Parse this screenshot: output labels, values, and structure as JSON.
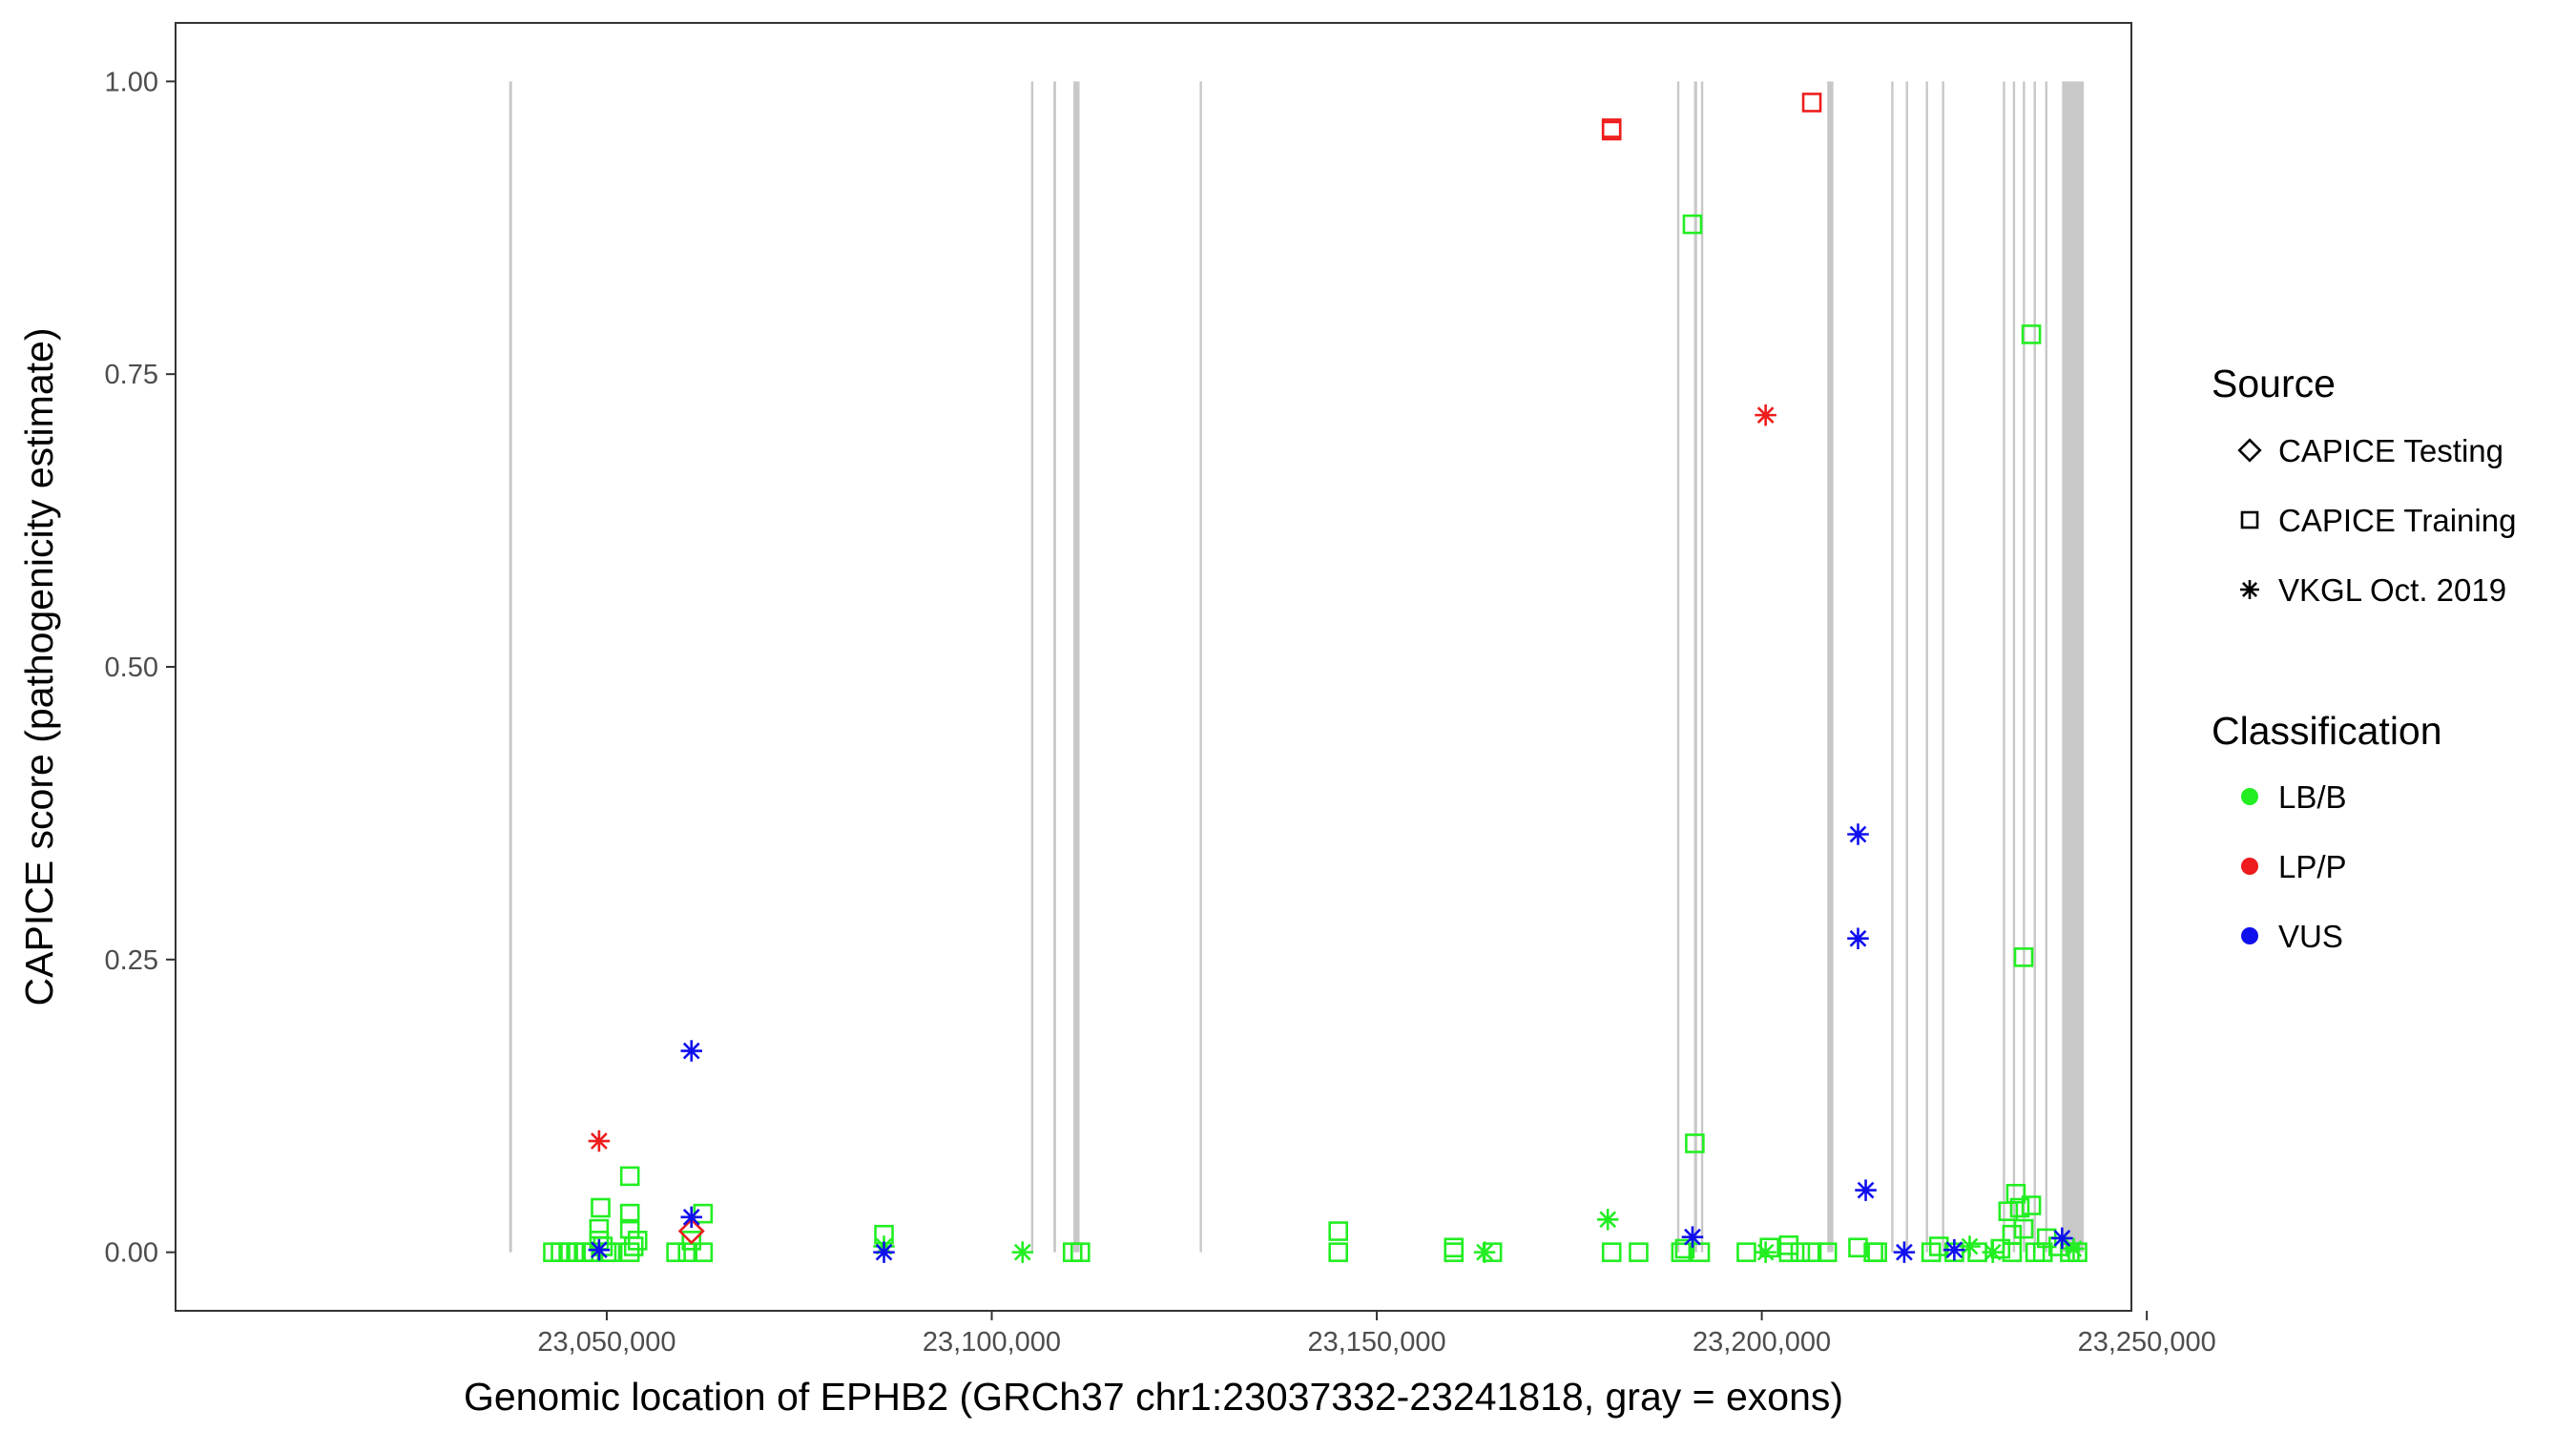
{
  "chart_data": {
    "type": "scatter",
    "title": "",
    "xlabel": "Genomic location of EPHB2 (GRCh37 chr1:23037332-23241818, gray = exons)",
    "ylabel": "CAPICE score (pathogenicity estimate)",
    "xlim": [
      22994000,
      23248000
    ],
    "ylim": [
      -0.05,
      1.05
    ],
    "xticks": [
      23050000,
      23100000,
      23150000,
      23200000,
      23250000
    ],
    "xtick_labels": [
      "23,050,000",
      "23,100,000",
      "23,150,000",
      "23,200,000",
      "23,250,000"
    ],
    "yticks": [
      0,
      0.25,
      0.5,
      0.75,
      1
    ],
    "ytick_labels": [
      "0.00",
      "0.25",
      "0.50",
      "0.75",
      "1.00"
    ],
    "grid": false,
    "exons": [
      [
        23037332,
        23037700
      ],
      [
        23105100,
        23105400
      ],
      [
        23108000,
        23108350
      ],
      [
        23110600,
        23111400
      ],
      [
        23127000,
        23127300
      ],
      [
        23189000,
        23189300
      ],
      [
        23191200,
        23191600
      ],
      [
        23192100,
        23192400
      ],
      [
        23208500,
        23209300
      ],
      [
        23216800,
        23217100
      ],
      [
        23218700,
        23219000
      ],
      [
        23221300,
        23221600
      ],
      [
        23223400,
        23223700
      ],
      [
        23231300,
        23231600
      ],
      [
        23232600,
        23232900
      ],
      [
        23233900,
        23234200
      ],
      [
        23235300,
        23235600
      ],
      [
        23236800,
        23237100
      ],
      [
        23239000,
        23241818
      ]
    ],
    "legend": {
      "position": "right",
      "source_title": "Source",
      "classification_title": "Classification",
      "sources": [
        {
          "label": "CAPICE Testing",
          "shape": "diamond"
        },
        {
          "label": "CAPICE Training",
          "shape": "square"
        },
        {
          "label": "VKGL Oct. 2019",
          "shape": "star"
        }
      ],
      "classes": [
        {
          "label": "LB/B",
          "color": "#22ee22"
        },
        {
          "label": "LP/P",
          "color": "#ee1c1c"
        },
        {
          "label": "VUS",
          "color": "#1010ee"
        }
      ]
    },
    "series": [
      {
        "name": "LB/B",
        "color": "#22ee22",
        "points": [
          {
            "x": 23043000,
            "y": 0.0,
            "s": "square"
          },
          {
            "x": 23044000,
            "y": 0.0,
            "s": "square"
          },
          {
            "x": 23045000,
            "y": 0.0,
            "s": "square"
          },
          {
            "x": 23046000,
            "y": 0.0,
            "s": "square"
          },
          {
            "x": 23047000,
            "y": 0.0,
            "s": "square"
          },
          {
            "x": 23048000,
            "y": 0.0,
            "s": "square"
          },
          {
            "x": 23049000,
            "y": 0.01,
            "s": "square"
          },
          {
            "x": 23049000,
            "y": 0.02,
            "s": "square"
          },
          {
            "x": 23049200,
            "y": 0.038,
            "s": "square"
          },
          {
            "x": 23049500,
            "y": 0.005,
            "s": "square"
          },
          {
            "x": 23050000,
            "y": 0.0,
            "s": "square"
          },
          {
            "x": 23050500,
            "y": 0.0,
            "s": "square"
          },
          {
            "x": 23053000,
            "y": 0.065,
            "s": "square"
          },
          {
            "x": 23053000,
            "y": 0.033,
            "s": "square"
          },
          {
            "x": 23053000,
            "y": 0.02,
            "s": "square"
          },
          {
            "x": 23053000,
            "y": 0.0,
            "s": "square"
          },
          {
            "x": 23053500,
            "y": 0.005,
            "s": "square"
          },
          {
            "x": 23054000,
            "y": 0.01,
            "s": "square"
          },
          {
            "x": 23059000,
            "y": 0.0,
            "s": "square"
          },
          {
            "x": 23060500,
            "y": 0.0,
            "s": "square"
          },
          {
            "x": 23061000,
            "y": 0.01,
            "s": "square"
          },
          {
            "x": 23062500,
            "y": 0.0,
            "s": "square"
          },
          {
            "x": 23062500,
            "y": 0.033,
            "s": "square"
          },
          {
            "x": 23086000,
            "y": 0.015,
            "s": "square"
          },
          {
            "x": 23086000,
            "y": 0.005,
            "s": "star"
          },
          {
            "x": 23104000,
            "y": 0.0,
            "s": "star"
          },
          {
            "x": 23110500,
            "y": 0.0,
            "s": "square"
          },
          {
            "x": 23111500,
            "y": 0.0,
            "s": "square"
          },
          {
            "x": 23145000,
            "y": 0.018,
            "s": "square"
          },
          {
            "x": 23145000,
            "y": 0.0,
            "s": "square"
          },
          {
            "x": 23160000,
            "y": 0.004,
            "s": "square"
          },
          {
            "x": 23160000,
            "y": 0.0,
            "s": "square"
          },
          {
            "x": 23164000,
            "y": 0.0,
            "s": "star"
          },
          {
            "x": 23165000,
            "y": 0.0,
            "s": "square"
          },
          {
            "x": 23180000,
            "y": 0.028,
            "s": "star"
          },
          {
            "x": 23180500,
            "y": 0.0,
            "s": "square"
          },
          {
            "x": 23184000,
            "y": 0.0,
            "s": "square"
          },
          {
            "x": 23189500,
            "y": 0.0,
            "s": "square"
          },
          {
            "x": 23190000,
            "y": 0.003,
            "s": "square"
          },
          {
            "x": 23191000,
            "y": 0.878,
            "s": "square"
          },
          {
            "x": 23191300,
            "y": 0.093,
            "s": "square"
          },
          {
            "x": 23192000,
            "y": 0.0,
            "s": "square"
          },
          {
            "x": 23198000,
            "y": 0.0,
            "s": "square"
          },
          {
            "x": 23200500,
            "y": 0.0,
            "s": "star"
          },
          {
            "x": 23201000,
            "y": 0.004,
            "s": "square"
          },
          {
            "x": 23203500,
            "y": 0.006,
            "s": "square"
          },
          {
            "x": 23203500,
            "y": 0.0,
            "s": "square"
          },
          {
            "x": 23205000,
            "y": 0.0,
            "s": "square"
          },
          {
            "x": 23206500,
            "y": 0.0,
            "s": "square"
          },
          {
            "x": 23208500,
            "y": 0.0,
            "s": "square"
          },
          {
            "x": 23212500,
            "y": 0.004,
            "s": "square"
          },
          {
            "x": 23214500,
            "y": 0.0,
            "s": "square"
          },
          {
            "x": 23215000,
            "y": 0.0,
            "s": "square"
          },
          {
            "x": 23222000,
            "y": 0.0,
            "s": "square"
          },
          {
            "x": 23223000,
            "y": 0.005,
            "s": "square"
          },
          {
            "x": 23225000,
            "y": 0.0,
            "s": "square"
          },
          {
            "x": 23227000,
            "y": 0.005,
            "s": "star"
          },
          {
            "x": 23228000,
            "y": 0.0,
            "s": "square"
          },
          {
            "x": 23230000,
            "y": 0.0,
            "s": "star"
          },
          {
            "x": 23231000,
            "y": 0.003,
            "s": "square"
          },
          {
            "x": 23232000,
            "y": 0.035,
            "s": "square"
          },
          {
            "x": 23232500,
            "y": 0.015,
            "s": "square"
          },
          {
            "x": 23232500,
            "y": 0.0,
            "s": "square"
          },
          {
            "x": 23233000,
            "y": 0.05,
            "s": "square"
          },
          {
            "x": 23233500,
            "y": 0.038,
            "s": "square"
          },
          {
            "x": 23234000,
            "y": 0.252,
            "s": "square"
          },
          {
            "x": 23234000,
            "y": 0.02,
            "s": "square"
          },
          {
            "x": 23235000,
            "y": 0.04,
            "s": "square"
          },
          {
            "x": 23235000,
            "y": 0.784,
            "s": "square"
          },
          {
            "x": 23235500,
            "y": 0.0,
            "s": "square"
          },
          {
            "x": 23236500,
            "y": 0.0,
            "s": "square"
          },
          {
            "x": 23237000,
            "y": 0.012,
            "s": "square"
          },
          {
            "x": 23238500,
            "y": 0.005,
            "s": "square"
          },
          {
            "x": 23240000,
            "y": 0.0,
            "s": "square"
          },
          {
            "x": 23240500,
            "y": 0.003,
            "s": "star"
          },
          {
            "x": 23241000,
            "y": 0.0,
            "s": "square"
          }
        ]
      },
      {
        "name": "LP/P",
        "color": "#ee1c1c",
        "points": [
          {
            "x": 23049000,
            "y": 0.095,
            "s": "star"
          },
          {
            "x": 23061000,
            "y": 0.018,
            "s": "diamond"
          },
          {
            "x": 23180500,
            "y": 0.96,
            "s": "square"
          },
          {
            "x": 23180500,
            "y": 0.958,
            "s": "square"
          },
          {
            "x": 23200500,
            "y": 0.715,
            "s": "star"
          },
          {
            "x": 23206500,
            "y": 0.982,
            "s": "square"
          }
        ]
      },
      {
        "name": "VUS",
        "color": "#1010ee",
        "points": [
          {
            "x": 23049000,
            "y": 0.002,
            "s": "star"
          },
          {
            "x": 23061000,
            "y": 0.172,
            "s": "star"
          },
          {
            "x": 23061000,
            "y": 0.03,
            "s": "star"
          },
          {
            "x": 23086000,
            "y": 0.0,
            "s": "star"
          },
          {
            "x": 23191000,
            "y": 0.013,
            "s": "star"
          },
          {
            "x": 23212500,
            "y": 0.357,
            "s": "star"
          },
          {
            "x": 23212500,
            "y": 0.268,
            "s": "star"
          },
          {
            "x": 23213500,
            "y": 0.053,
            "s": "star"
          },
          {
            "x": 23218500,
            "y": 0.0,
            "s": "star"
          },
          {
            "x": 23225000,
            "y": 0.002,
            "s": "star"
          },
          {
            "x": 23239000,
            "y": 0.012,
            "s": "star"
          }
        ]
      }
    ]
  }
}
